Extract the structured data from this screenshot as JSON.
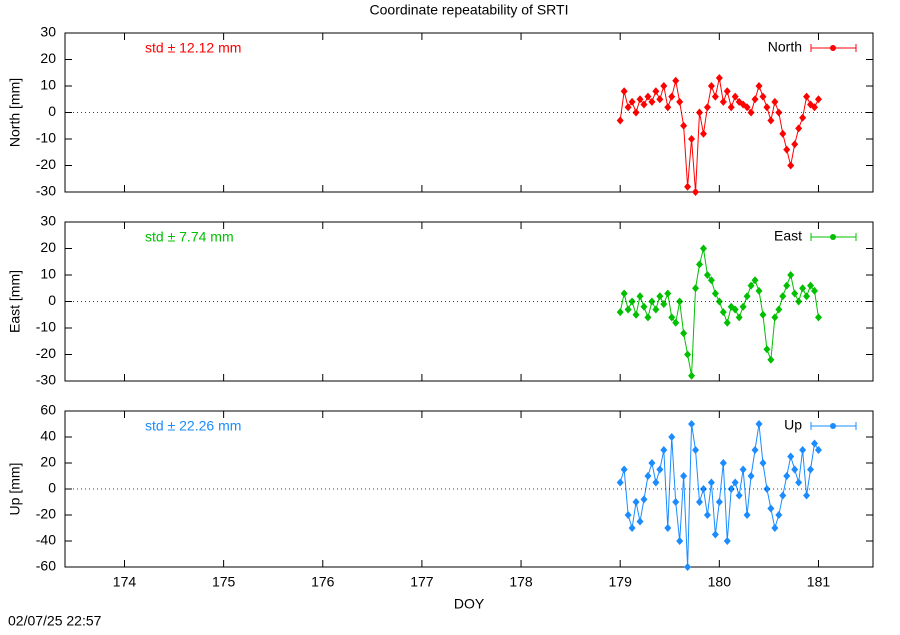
{
  "title": "Coordinate repeatability of SRTI",
  "timestamp": "02/07/25 22:57",
  "chart_data": [
    {
      "type": "line",
      "ylabel": "North [mm]",
      "annotation": "std ± 12.12 mm",
      "x": [
        179.0,
        179.04,
        179.08,
        179.12,
        179.16,
        179.2,
        179.24,
        179.28,
        179.32,
        179.36,
        179.4,
        179.44,
        179.48,
        179.52,
        179.56,
        179.6,
        179.64,
        179.68,
        179.72,
        179.76,
        179.8,
        179.84,
        179.88,
        179.92,
        179.96,
        180.0,
        180.04,
        180.08,
        180.12,
        180.16,
        180.2,
        180.24,
        180.28,
        180.32,
        180.36,
        180.4,
        180.44,
        180.48,
        180.52,
        180.56,
        180.6,
        180.64,
        180.68,
        180.72,
        180.76,
        180.8,
        180.84,
        180.88,
        180.92,
        180.96,
        181.0
      ],
      "series": [
        {
          "name": "North",
          "color": "#ff0000",
          "values": [
            -3,
            8,
            2,
            4,
            0,
            5,
            3,
            6,
            4,
            8,
            5,
            10,
            2,
            6,
            12,
            4,
            -5,
            -28,
            -10,
            -30,
            0,
            -8,
            2,
            10,
            6,
            13,
            4,
            8,
            2,
            6,
            4,
            3,
            2,
            0,
            5,
            10,
            6,
            2,
            -3,
            4,
            0,
            -8,
            -14,
            -20,
            -12,
            -6,
            -2,
            6,
            3,
            2,
            5
          ]
        }
      ],
      "ylim": [
        -30,
        30
      ],
      "yticks": [
        -30,
        -20,
        -10,
        0,
        10,
        20,
        30
      ]
    },
    {
      "type": "line",
      "ylabel": "East [mm]",
      "annotation": "std ± 7.74 mm",
      "x": [
        179.0,
        179.04,
        179.08,
        179.12,
        179.16,
        179.2,
        179.24,
        179.28,
        179.32,
        179.36,
        179.4,
        179.44,
        179.48,
        179.52,
        179.56,
        179.6,
        179.64,
        179.68,
        179.72,
        179.76,
        179.8,
        179.84,
        179.88,
        179.92,
        179.96,
        180.0,
        180.04,
        180.08,
        180.12,
        180.16,
        180.2,
        180.24,
        180.28,
        180.32,
        180.36,
        180.4,
        180.44,
        180.48,
        180.52,
        180.56,
        180.6,
        180.64,
        180.68,
        180.72,
        180.76,
        180.8,
        180.84,
        180.88,
        180.92,
        180.96,
        181.0
      ],
      "series": [
        {
          "name": "East",
          "color": "#00c000",
          "values": [
            -4,
            3,
            -3,
            0,
            -5,
            2,
            -2,
            -6,
            0,
            -3,
            2,
            -1,
            3,
            -6,
            -8,
            0,
            -12,
            -20,
            -28,
            5,
            14,
            20,
            10,
            8,
            3,
            0,
            -4,
            -8,
            -2,
            -3,
            -6,
            -2,
            2,
            6,
            8,
            4,
            -5,
            -18,
            -22,
            -6,
            -3,
            2,
            6,
            10,
            3,
            0,
            5,
            2,
            6,
            4,
            -6
          ]
        }
      ],
      "ylim": [
        -30,
        30
      ],
      "yticks": [
        -30,
        -20,
        -10,
        0,
        10,
        20,
        30
      ]
    },
    {
      "type": "line",
      "ylabel": "Up [mm]",
      "annotation": "std ± 22.26 mm",
      "xlabel": "DOY",
      "x": [
        179.0,
        179.04,
        179.08,
        179.12,
        179.16,
        179.2,
        179.24,
        179.28,
        179.32,
        179.36,
        179.4,
        179.44,
        179.48,
        179.52,
        179.56,
        179.6,
        179.64,
        179.68,
        179.72,
        179.76,
        179.8,
        179.84,
        179.88,
        179.92,
        179.96,
        180.0,
        180.04,
        180.08,
        180.12,
        180.16,
        180.2,
        180.24,
        180.28,
        180.32,
        180.36,
        180.4,
        180.44,
        180.48,
        180.52,
        180.56,
        180.6,
        180.64,
        180.68,
        180.72,
        180.76,
        180.8,
        180.84,
        180.88,
        180.92,
        180.96,
        181.0
      ],
      "series": [
        {
          "name": "Up",
          "color": "#1a8cff",
          "values": [
            5,
            15,
            -20,
            -30,
            -10,
            -25,
            -8,
            10,
            20,
            5,
            15,
            30,
            -30,
            40,
            -10,
            -40,
            10,
            -60,
            50,
            30,
            -10,
            0,
            -20,
            5,
            -35,
            -10,
            20,
            -40,
            0,
            5,
            -5,
            15,
            -20,
            10,
            30,
            50,
            20,
            0,
            -15,
            -30,
            -20,
            -5,
            10,
            25,
            15,
            5,
            30,
            -5,
            15,
            35,
            30
          ]
        }
      ],
      "xlim": [
        173.4,
        181.55
      ],
      "xticks": [
        174,
        175,
        176,
        177,
        178,
        179,
        180,
        181
      ],
      "ylim": [
        -60,
        60
      ],
      "yticks": [
        -60,
        -40,
        -20,
        0,
        20,
        40,
        60
      ]
    }
  ]
}
